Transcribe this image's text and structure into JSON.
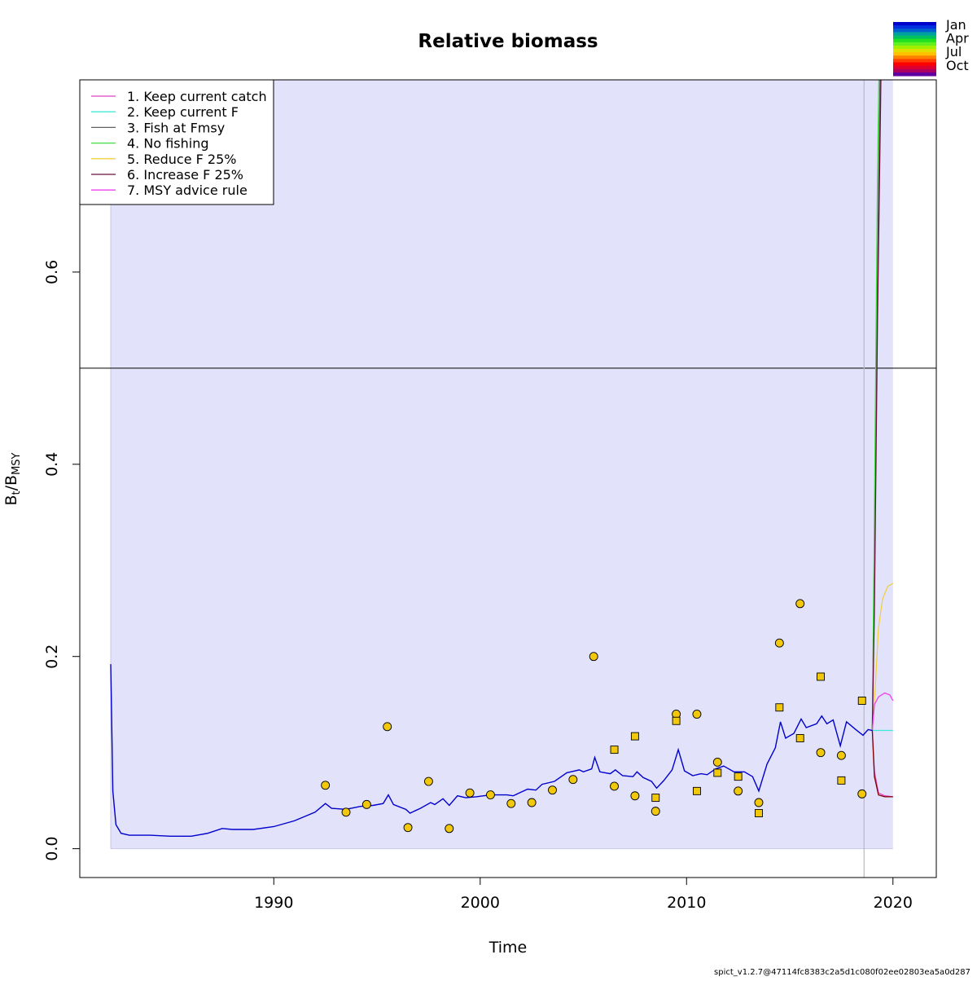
{
  "chart_data": {
    "type": "line",
    "title": "Relative biomass",
    "xlabel": "Time",
    "ylabel_main": "B",
    "ylabel_sub1": "t",
    "ylabel_sep": "/B",
    "ylabel_sub2": "MSY",
    "xlim": [
      1980.6,
      2022.1
    ],
    "ylim": [
      -0.03,
      0.8
    ],
    "x_ticks": [
      {
        "v": 1990,
        "label": "1990"
      },
      {
        "v": 2000,
        "label": "2000"
      },
      {
        "v": 2010,
        "label": "2010"
      },
      {
        "v": 2020,
        "label": "2020"
      }
    ],
    "y_ticks": [
      {
        "v": 0.0,
        "label": "0.0"
      },
      {
        "v": 0.2,
        "label": "0.2"
      },
      {
        "v": 0.4,
        "label": "0.4"
      },
      {
        "v": 0.6,
        "label": "0.6"
      }
    ],
    "reference_line_y": 0.5,
    "vertical_line_x": 2018.6,
    "ci_band": {
      "x_start": 1982.1,
      "x_end": 2020.0,
      "lower": 0.0,
      "upper": 0.8,
      "color": "#e2e2fb"
    },
    "estimate": {
      "color": "#0000cc",
      "points": [
        [
          1982.1,
          0.192
        ],
        [
          1982.2,
          0.06
        ],
        [
          1982.35,
          0.025
        ],
        [
          1982.6,
          0.016
        ],
        [
          1983,
          0.014
        ],
        [
          1984,
          0.014
        ],
        [
          1985,
          0.013
        ],
        [
          1986,
          0.013
        ],
        [
          1986.8,
          0.016
        ],
        [
          1987.5,
          0.021
        ],
        [
          1988,
          0.02
        ],
        [
          1989,
          0.02
        ],
        [
          1990,
          0.023
        ],
        [
          1991,
          0.029
        ],
        [
          1992,
          0.038
        ],
        [
          1992.5,
          0.047
        ],
        [
          1992.8,
          0.042
        ],
        [
          1993.5,
          0.041
        ],
        [
          1994.2,
          0.044
        ],
        [
          1994.8,
          0.045
        ],
        [
          1995.3,
          0.047
        ],
        [
          1995.55,
          0.056
        ],
        [
          1995.8,
          0.046
        ],
        [
          1996.4,
          0.041
        ],
        [
          1996.6,
          0.037
        ],
        [
          1997.1,
          0.042
        ],
        [
          1997.6,
          0.048
        ],
        [
          1997.8,
          0.046
        ],
        [
          1998.2,
          0.052
        ],
        [
          1998.5,
          0.045
        ],
        [
          1998.9,
          0.055
        ],
        [
          1999.3,
          0.053
        ],
        [
          1999.8,
          0.054
        ],
        [
          2000.5,
          0.056
        ],
        [
          2001.3,
          0.056
        ],
        [
          2001.6,
          0.055
        ],
        [
          2002.3,
          0.062
        ],
        [
          2002.7,
          0.061
        ],
        [
          2003.0,
          0.067
        ],
        [
          2003.6,
          0.07
        ],
        [
          2004.2,
          0.079
        ],
        [
          2004.8,
          0.082
        ],
        [
          2005.0,
          0.08
        ],
        [
          2005.4,
          0.083
        ],
        [
          2005.55,
          0.095
        ],
        [
          2005.8,
          0.08
        ],
        [
          2006.3,
          0.078
        ],
        [
          2006.55,
          0.082
        ],
        [
          2006.9,
          0.076
        ],
        [
          2007.4,
          0.075
        ],
        [
          2007.6,
          0.08
        ],
        [
          2007.9,
          0.074
        ],
        [
          2008.3,
          0.07
        ],
        [
          2008.55,
          0.063
        ],
        [
          2008.9,
          0.071
        ],
        [
          2009.3,
          0.082
        ],
        [
          2009.6,
          0.103
        ],
        [
          2009.9,
          0.081
        ],
        [
          2010.3,
          0.076
        ],
        [
          2010.7,
          0.078
        ],
        [
          2011.0,
          0.077
        ],
        [
          2011.4,
          0.083
        ],
        [
          2011.8,
          0.086
        ],
        [
          2012.3,
          0.08
        ],
        [
          2012.8,
          0.08
        ],
        [
          2013.2,
          0.075
        ],
        [
          2013.5,
          0.06
        ],
        [
          2013.9,
          0.088
        ],
        [
          2014.3,
          0.105
        ],
        [
          2014.55,
          0.132
        ],
        [
          2014.8,
          0.115
        ],
        [
          2015.2,
          0.12
        ],
        [
          2015.55,
          0.135
        ],
        [
          2015.8,
          0.126
        ],
        [
          2016.3,
          0.13
        ],
        [
          2016.55,
          0.138
        ],
        [
          2016.8,
          0.13
        ],
        [
          2017.1,
          0.134
        ],
        [
          2017.45,
          0.107
        ],
        [
          2017.75,
          0.132
        ],
        [
          2018.2,
          0.124
        ],
        [
          2018.55,
          0.118
        ],
        [
          2018.8,
          0.124
        ],
        [
          2019.0,
          0.123
        ]
      ]
    },
    "series": [
      {
        "name": "1. Keep current catch",
        "color": "#e040c0",
        "points": [
          [
            2019,
            0.123
          ],
          [
            2019.1,
            0.08
          ],
          [
            2019.3,
            0.058
          ],
          [
            2019.6,
            0.055
          ],
          [
            2020,
            0.054
          ]
        ]
      },
      {
        "name": "2. Keep current F",
        "color": "#40e8d8",
        "points": [
          [
            2019,
            0.123
          ],
          [
            2019.5,
            0.123
          ],
          [
            2020,
            0.123
          ]
        ]
      },
      {
        "name": "3. Fish at Fmsy",
        "color": "#606060",
        "points": [
          [
            2019,
            0.123
          ],
          [
            2019.1,
            0.3
          ],
          [
            2019.25,
            0.6
          ],
          [
            2019.4,
            0.85
          ]
        ]
      },
      {
        "name": "4. No fishing",
        "color": "#40e040",
        "points": [
          [
            2019,
            0.123
          ],
          [
            2019.1,
            0.35
          ],
          [
            2019.25,
            0.7
          ],
          [
            2019.35,
            0.85
          ]
        ]
      },
      {
        "name": "5. Reduce F 25%",
        "color": "#f0d040",
        "points": [
          [
            2019,
            0.123
          ],
          [
            2019.15,
            0.17
          ],
          [
            2019.3,
            0.23
          ],
          [
            2019.5,
            0.26
          ],
          [
            2019.75,
            0.273
          ],
          [
            2020,
            0.276
          ]
        ]
      },
      {
        "name": "6. Increase F 25%",
        "color": "#6a1040",
        "points": [
          [
            2019,
            0.123
          ],
          [
            2019.1,
            0.25
          ],
          [
            2019.25,
            0.55
          ],
          [
            2019.45,
            0.85
          ]
        ]
      },
      {
        "name": "7. MSY advice rule",
        "color": "#f040f0",
        "points": [
          [
            2019,
            0.123
          ],
          [
            2019.1,
            0.15
          ],
          [
            2019.3,
            0.158
          ],
          [
            2019.6,
            0.162
          ],
          [
            2019.85,
            0.16
          ],
          [
            2020,
            0.154
          ]
        ]
      }
    ],
    "extra_line": {
      "color": "#800000",
      "points": [
        [
          2019,
          0.123
        ],
        [
          2019.1,
          0.075
        ],
        [
          2019.3,
          0.056
        ],
        [
          2019.6,
          0.054
        ],
        [
          2020,
          0.054
        ]
      ]
    },
    "index_circles": [
      [
        1992.5,
        0.066
      ],
      [
        1993.5,
        0.038
      ],
      [
        1994.5,
        0.046
      ],
      [
        1995.5,
        0.127
      ],
      [
        1996.5,
        0.022
      ],
      [
        1997.5,
        0.07
      ],
      [
        1998.5,
        0.021
      ],
      [
        1999.5,
        0.058
      ],
      [
        2000.5,
        0.056
      ],
      [
        2001.5,
        0.047
      ],
      [
        2002.5,
        0.048
      ],
      [
        2003.5,
        0.061
      ],
      [
        2004.5,
        0.072
      ],
      [
        2005.5,
        0.2
      ],
      [
        2006.5,
        0.065
      ],
      [
        2007.5,
        0.055
      ],
      [
        2008.5,
        0.039
      ],
      [
        2009.5,
        0.14
      ],
      [
        2010.5,
        0.14
      ],
      [
        2011.5,
        0.09
      ],
      [
        2012.5,
        0.06
      ],
      [
        2013.5,
        0.048
      ],
      [
        2014.5,
        0.214
      ],
      [
        2015.5,
        0.255
      ],
      [
        2016.5,
        0.1
      ],
      [
        2017.5,
        0.097
      ],
      [
        2018.5,
        0.057
      ]
    ],
    "index_squares": [
      [
        2006.5,
        0.103
      ],
      [
        2007.5,
        0.117
      ],
      [
        2008.5,
        0.053
      ],
      [
        2009.5,
        0.133
      ],
      [
        2010.5,
        0.06
      ],
      [
        2011.5,
        0.079
      ],
      [
        2012.5,
        0.075
      ],
      [
        2013.5,
        0.037
      ],
      [
        2014.5,
        0.147
      ],
      [
        2015.5,
        0.115
      ],
      [
        2016.5,
        0.179
      ],
      [
        2017.5,
        0.071
      ],
      [
        2018.5,
        0.154
      ]
    ],
    "point_fill": "#f2c80c",
    "season_legend": {
      "labels": [
        "Jan",
        "Apr",
        "Jul",
        "Oct"
      ],
      "colors": [
        "#0000cc",
        "#0030e0",
        "#0060d0",
        "#00a0a0",
        "#00c060",
        "#20e020",
        "#60f020",
        "#a0f000",
        "#e0e000",
        "#ffc000",
        "#ff8000",
        "#ff4000",
        "#ff0000",
        "#e00030",
        "#b00060",
        "#6000a0"
      ]
    },
    "legend_position": "top-left",
    "footer": "spict_v1.2.7@47114fc8383c2a5d1c080f02ee02803ea5a0d287"
  }
}
